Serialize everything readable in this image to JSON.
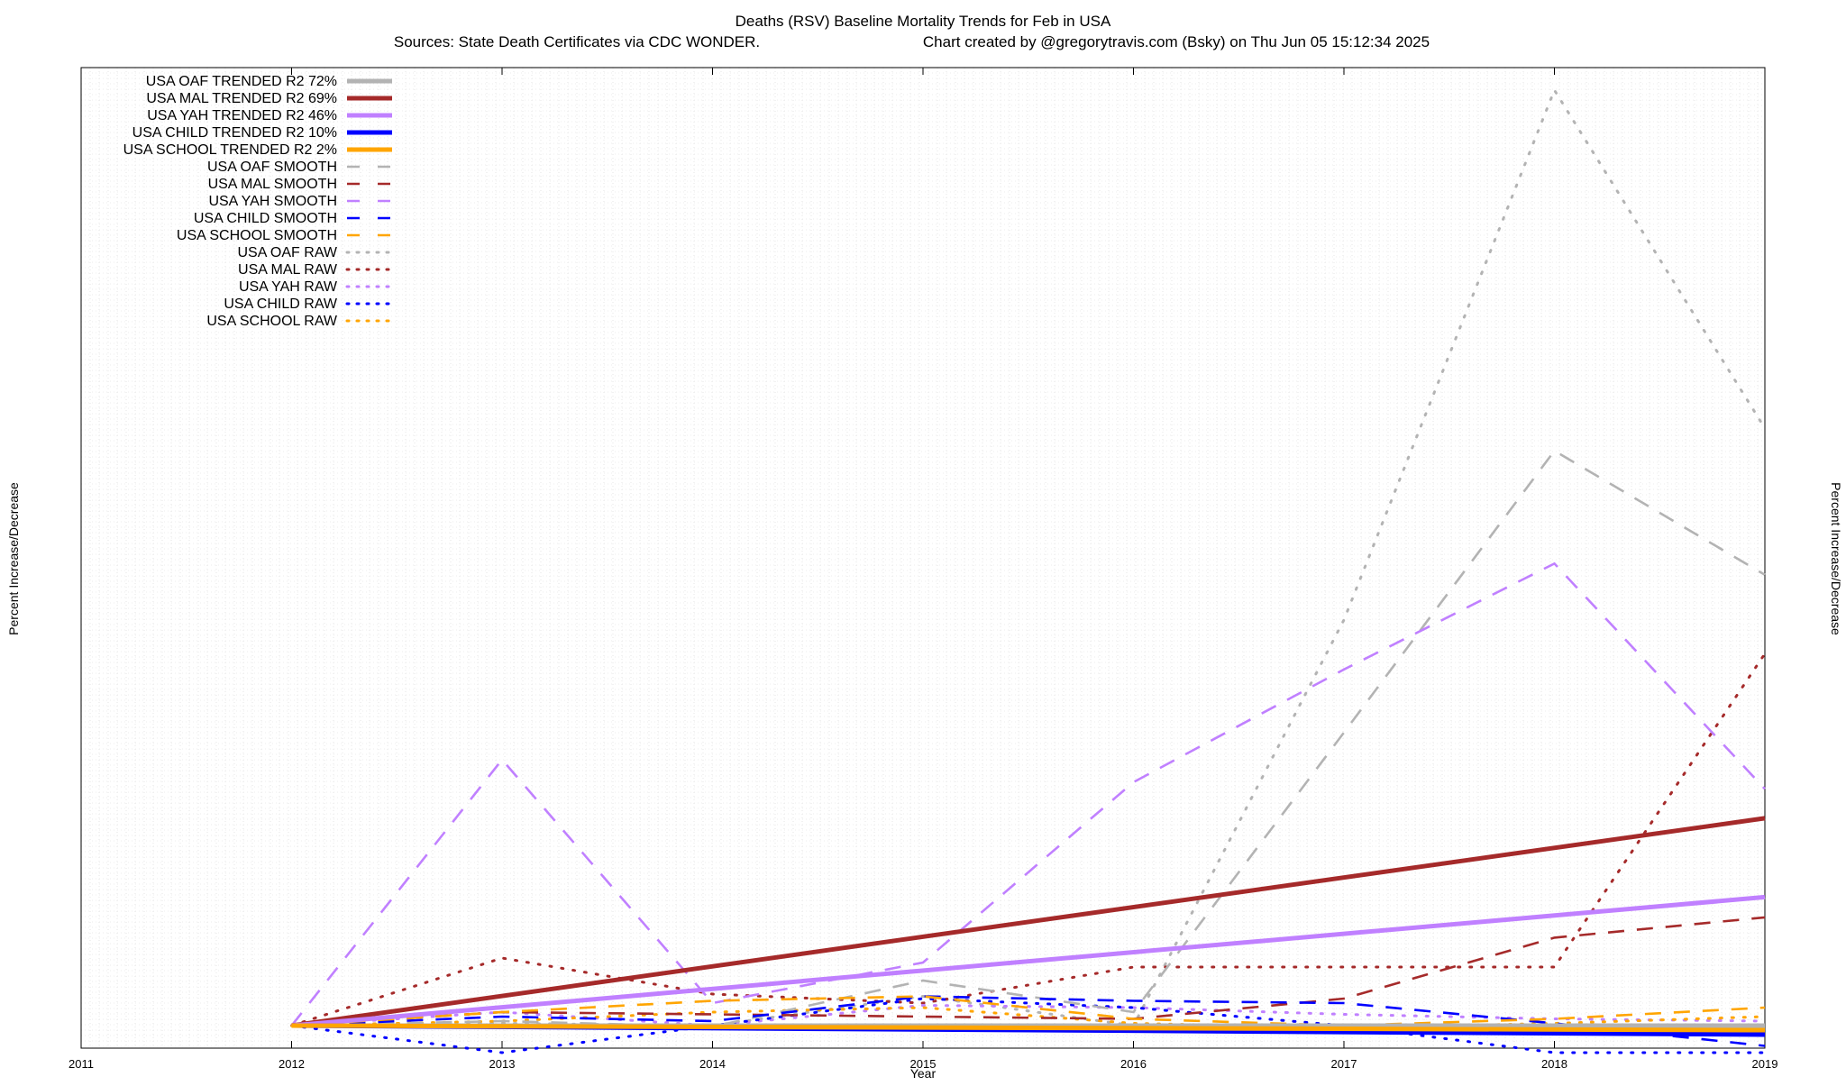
{
  "chart_data": {
    "type": "line",
    "title": "Deaths (RSV)  Baseline Mortality Trends for Feb in USA",
    "subtitle_left": "Sources: State Death Certificates via CDC WONDER.",
    "subtitle_right": "Chart created by @gregorytravis.com (Bsky) on Thu Jun 05 15:12:34 2025",
    "xlabel": "Year",
    "ylabel": "Percent Increase/Decrease",
    "x_ticks": [
      "2011",
      "2012",
      "2013",
      "2014",
      "2015",
      "2016",
      "2017",
      "2018",
      "2019"
    ],
    "xlim": [
      2011,
      2019
    ],
    "ylim": [
      -100,
      4250
    ],
    "grid": true,
    "legend_position": "top-left",
    "series": [
      {
        "name": "USA OAF TRENDED R2  72%",
        "style": "trend",
        "color": "#b3b3b3",
        "x": [
          2012,
          2019
        ],
        "y": [
          0,
          0
        ]
      },
      {
        "name": "USA MAL TRENDED R2  69%",
        "style": "trend",
        "color": "#a52a2a",
        "x": [
          2012,
          2019
        ],
        "y": [
          0,
          920
        ]
      },
      {
        "name": "USA YAH TRENDED R2  46%",
        "style": "trend",
        "color": "#c080ff",
        "x": [
          2012,
          2019
        ],
        "y": [
          0,
          570
        ]
      },
      {
        "name": "USA CHILD TRENDED R2  10%",
        "style": "trend",
        "color": "#0000ff",
        "x": [
          2012,
          2019
        ],
        "y": [
          0,
          -40
        ]
      },
      {
        "name": "USA SCHOOL TRENDED R2   2%",
        "style": "trend",
        "color": "#ffa500",
        "x": [
          2012,
          2019
        ],
        "y": [
          0,
          -20
        ]
      },
      {
        "name": "USA OAF SMOOTH",
        "style": "smooth",
        "color": "#b3b3b3",
        "x": [
          2012,
          2013,
          2014,
          2015,
          2016,
          2017,
          2018,
          2019
        ],
        "y": [
          0,
          20,
          -5,
          200,
          60,
          1300,
          2550,
          2000
        ]
      },
      {
        "name": "USA MAL SMOOTH",
        "style": "smooth",
        "color": "#a52a2a",
        "x": [
          2012,
          2013,
          2014,
          2015,
          2016,
          2017,
          2018,
          2019
        ],
        "y": [
          0,
          60,
          50,
          40,
          30,
          120,
          390,
          480
        ]
      },
      {
        "name": "USA YAH SMOOTH",
        "style": "smooth",
        "color": "#c080ff",
        "x": [
          2012,
          2013,
          2014,
          2015,
          2016,
          2017,
          2018,
          2019
        ],
        "y": [
          0,
          1180,
          100,
          280,
          1080,
          1580,
          2050,
          1050
        ]
      },
      {
        "name": "USA CHILD SMOOTH",
        "style": "smooth",
        "color": "#0000ff",
        "x": [
          2012,
          2013,
          2014,
          2015,
          2016,
          2017,
          2018,
          2019
        ],
        "y": [
          0,
          40,
          20,
          130,
          110,
          100,
          10,
          -90
        ]
      },
      {
        "name": "USA SCHOOL SMOOTH",
        "style": "smooth",
        "color": "#ffa500",
        "x": [
          2012,
          2013,
          2014,
          2015,
          2016,
          2017,
          2018,
          2019
        ],
        "y": [
          0,
          60,
          110,
          130,
          30,
          0,
          30,
          80
        ]
      },
      {
        "name": "USA OAF RAW",
        "style": "raw",
        "color": "#b3b3b3",
        "x": [
          2012,
          2013,
          2014,
          2015,
          2016,
          2017,
          2018,
          2019
        ],
        "y": [
          0,
          10,
          0,
          130,
          0,
          1800,
          4150,
          2650
        ]
      },
      {
        "name": "USA MAL RAW",
        "style": "raw",
        "color": "#a52a2a",
        "x": [
          2012,
          2013,
          2014,
          2015,
          2016,
          2017,
          2018,
          2019
        ],
        "y": [
          0,
          300,
          140,
          100,
          260,
          260,
          260,
          1650
        ]
      },
      {
        "name": "USA YAH RAW",
        "style": "raw",
        "color": "#c080ff",
        "x": [
          2012,
          2013,
          2014,
          2015,
          2016,
          2017,
          2018,
          2019
        ],
        "y": [
          0,
          60,
          0,
          90,
          80,
          50,
          30,
          20
        ]
      },
      {
        "name": "USA CHILD RAW",
        "style": "raw",
        "color": "#0000ff",
        "x": [
          2012,
          2013,
          2014,
          2015,
          2016,
          2017,
          2018,
          2019
        ],
        "y": [
          0,
          -120,
          0,
          120,
          80,
          0,
          -120,
          -120
        ]
      },
      {
        "name": "USA SCHOOL RAW",
        "style": "raw",
        "color": "#ffa500",
        "x": [
          2012,
          2013,
          2014,
          2015,
          2016,
          2017,
          2018,
          2019
        ],
        "y": [
          0,
          20,
          60,
          80,
          10,
          -10,
          10,
          40
        ]
      }
    ]
  }
}
